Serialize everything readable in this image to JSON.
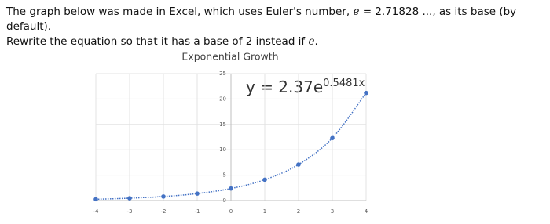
{
  "text": {
    "lines": [
      [
        "The graph below was made in Excel, which uses Euler's number, ",
        "e",
        " = 2.71828 ..., as its base (by default)."
      ],
      [
        "Rewrite the equation so that it has a base of 2 instead if ",
        "e",
        "."
      ]
    ]
  },
  "chart_data": {
    "type": "scatter",
    "title": "Exponential Growth",
    "annotation": [
      "y = 2.37e",
      "0.5481x"
    ],
    "series": [
      {
        "color": "#4472c4",
        "x": [
          -4,
          -3,
          -2,
          -1,
          0,
          1,
          2,
          3,
          4
        ],
        "values": [
          0.26,
          0.46,
          0.79,
          1.37,
          2.37,
          4.1,
          7.1,
          12.3,
          21.2
        ]
      }
    ],
    "xlim": [
      -4,
      4
    ],
    "xticks": [
      -4,
      -3,
      -2,
      -1,
      0,
      1,
      2,
      3,
      4
    ],
    "ylim": [
      0,
      25
    ],
    "yticks": [
      0,
      5,
      10,
      15,
      20,
      25
    ],
    "grid": true,
    "trendline": true
  }
}
